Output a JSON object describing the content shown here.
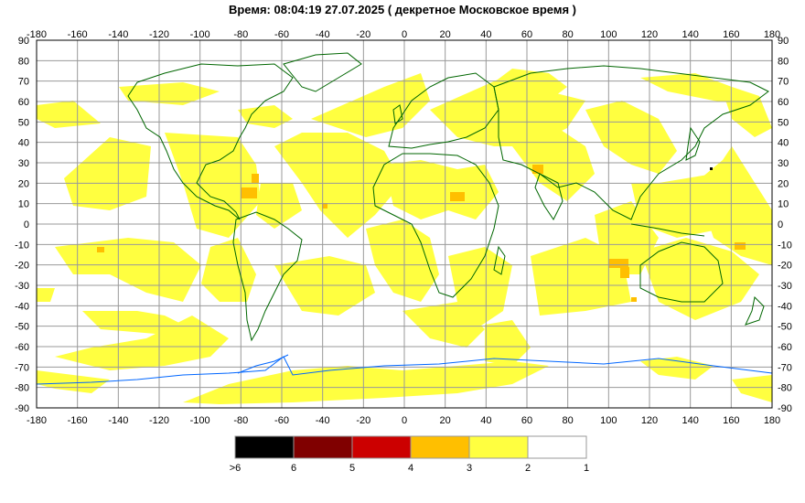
{
  "title": "Время: 08:04:19   27.07.2025  ( декретное Московское время )",
  "axes": {
    "longitude_ticks": [
      "-180",
      "-160",
      "-140",
      "-120",
      "-100",
      "-80",
      "-60",
      "-40",
      "-20",
      "0",
      "20",
      "40",
      "60",
      "80",
      "100",
      "120",
      "140",
      "160",
      "180"
    ],
    "latitude_ticks": [
      "90",
      "80",
      "70",
      "60",
      "50",
      "40",
      "30",
      "20",
      "10",
      "0",
      "-10",
      "-20",
      "-30",
      "-40",
      "-50",
      "-60",
      "-70",
      "-80",
      "-90"
    ],
    "lon_range": [
      -180,
      180
    ],
    "lat_range": [
      -90,
      90
    ],
    "grid": true
  },
  "legend": {
    "bins": [
      {
        "color": "#000000"
      },
      {
        "color": "#800000"
      },
      {
        "color": "#cc0000"
      },
      {
        "color": "#ffbf00"
      },
      {
        "color": "#ffff40"
      },
      {
        "color": "#ffffff"
      }
    ],
    "labels": [
      ">6",
      "6",
      "5",
      "4",
      "3",
      "2",
      "1"
    ]
  },
  "colors": {
    "land_outline": "#006600",
    "antarctica_outline": "#0066ff",
    "grid": "#999999",
    "level_3_fill": "#ffff40",
    "level_4_fill": "#ffbf00"
  }
}
